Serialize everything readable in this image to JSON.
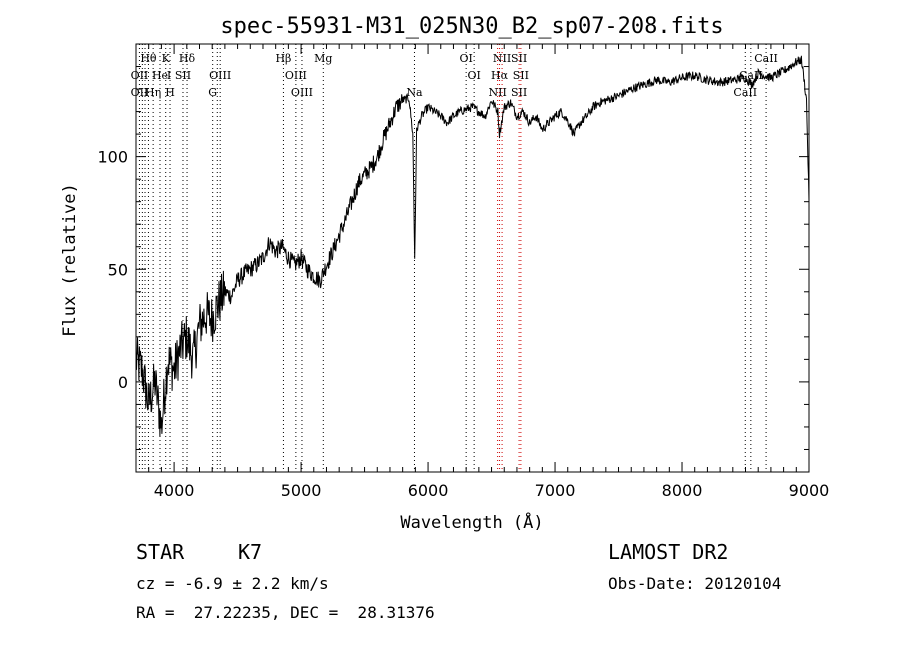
{
  "chart_data": {
    "type": "line",
    "title": "spec-55931-M31_025N30_B2_sp07-208.fits",
    "xlabel": "Wavelength (Å)",
    "ylabel": "Flux (relative)",
    "xlim": [
      3700,
      9000
    ],
    "ylim": [
      -40,
      150
    ],
    "xticks": [
      4000,
      5000,
      6000,
      7000,
      8000,
      9000
    ],
    "yticks": [
      0,
      50,
      100
    ],
    "grid": false,
    "line_color": "#000000",
    "marker_color": "#cc0000",
    "series": [
      {
        "x": [
          3700,
          3750,
          3800,
          3850,
          3900,
          3950,
          4000,
          4050,
          4100,
          4150,
          4200,
          4250,
          4300,
          4350,
          4400,
          4450,
          4500,
          4550,
          4600,
          4650,
          4700,
          4750,
          4800,
          4850,
          4900,
          4950,
          5000,
          5050,
          5100,
          5150,
          5200,
          5250,
          5300,
          5350,
          5400,
          5450,
          5500,
          5550,
          5600,
          5650,
          5700,
          5750,
          5800,
          5850,
          5880,
          5895,
          5910,
          5950,
          6000,
          6050,
          6100,
          6150,
          6200,
          6250,
          6300,
          6350,
          6400,
          6450,
          6500,
          6550,
          6563,
          6600,
          6650,
          6700,
          6750,
          6800,
          6850,
          6900,
          6950,
          7000,
          7050,
          7100,
          7150,
          7200,
          7250,
          7300,
          7350,
          7400,
          7500,
          7600,
          7700,
          7800,
          7900,
          8000,
          8100,
          8200,
          8300,
          8400,
          8500,
          8550,
          8600,
          8700,
          8800,
          8850,
          8900,
          8940,
          8960,
          8980,
          9000
        ],
        "y": [
          10,
          5,
          -10,
          0,
          -20,
          10,
          5,
          15,
          20,
          10,
          25,
          30,
          28,
          35,
          40,
          38,
          45,
          48,
          50,
          52,
          55,
          62,
          58,
          60,
          55,
          52,
          55,
          50,
          47,
          45,
          52,
          58,
          65,
          72,
          80,
          88,
          92,
          95,
          100,
          108,
          115,
          122,
          125,
          126,
          110,
          55,
          112,
          118,
          122,
          120,
          118,
          115,
          118,
          120,
          121,
          122,
          120,
          118,
          125,
          120,
          110,
          122,
          124,
          118,
          120,
          115,
          118,
          112,
          115,
          118,
          120,
          116,
          110,
          115,
          118,
          122,
          124,
          125,
          127,
          130,
          132,
          134,
          133,
          135,
          136,
          134,
          133,
          134,
          135,
          132,
          137,
          135,
          138,
          140,
          142,
          143,
          135,
          125,
          80
        ]
      }
    ],
    "line_markers": [
      {
        "label": "Hθ",
        "x": 3798,
        "row": 1
      },
      {
        "label": "K",
        "x": 3934,
        "row": 1
      },
      {
        "label": "Hδ",
        "x": 4102,
        "row": 1
      },
      {
        "label": "Hβ",
        "x": 4861,
        "row": 1
      },
      {
        "label": "Mg",
        "x": 5175,
        "row": 1
      },
      {
        "label": "OI",
        "x": 6300,
        "row": 1
      },
      {
        "label": "NII",
        "x": 6583,
        "row": 1
      },
      {
        "label": "SII",
        "x": 6717,
        "row": 1
      },
      {
        "label": "CaII",
        "x": 8662,
        "row": 1
      },
      {
        "label": "OII",
        "x": 3727,
        "row": 2
      },
      {
        "label": "He",
        "x": 3889,
        "row": 2
      },
      {
        "label": "I",
        "x": 3960,
        "row": 2
      },
      {
        "label": "SII",
        "x": 4070,
        "row": 2
      },
      {
        "label": "OIII",
        "x": 4363,
        "row": 2
      },
      {
        "label": "OIII",
        "x": 4959,
        "row": 2
      },
      {
        "label": "OI",
        "x": 6363,
        "row": 2
      },
      {
        "label": "Hα",
        "x": 6563,
        "row": 2
      },
      {
        "label": "SII",
        "x": 6731,
        "row": 2
      },
      {
        "label": "CaII",
        "x": 8542,
        "row": 2
      },
      {
        "label": "OII",
        "x": 3727,
        "row": 3
      },
      {
        "label": "Hη",
        "x": 3835,
        "row": 3
      },
      {
        "label": "H",
        "x": 3968,
        "row": 3
      },
      {
        "label": "G",
        "x": 4304,
        "row": 3
      },
      {
        "label": "OIII",
        "x": 5007,
        "row": 3
      },
      {
        "label": "Na",
        "x": 5893,
        "row": 3
      },
      {
        "label": "NII",
        "x": 6548,
        "row": 3
      },
      {
        "label": "SII",
        "x": 6717,
        "row": 3
      },
      {
        "label": "CaII",
        "x": 8498,
        "row": 3
      }
    ],
    "marker_lines": [
      3727,
      3750,
      3771,
      3798,
      3835,
      3889,
      3934,
      3968,
      4070,
      4102,
      4304,
      4340,
      4363,
      4861,
      4959,
      5007,
      5175,
      5893,
      6300,
      6363,
      6548,
      6563,
      6583,
      6717,
      6731,
      8498,
      8542,
      8662
    ],
    "red_marker_lines": [
      6548,
      6563,
      6583,
      6717,
      6731
    ]
  },
  "info": {
    "star_label": "STAR",
    "spectral_class": "K7",
    "survey": "LAMOST DR2",
    "cz": "cz = -6.9 ± 2.2 km/s",
    "obs_date": "Obs-Date: 20120104",
    "coords": "RA =  27.22235, DEC =  28.31376"
  }
}
